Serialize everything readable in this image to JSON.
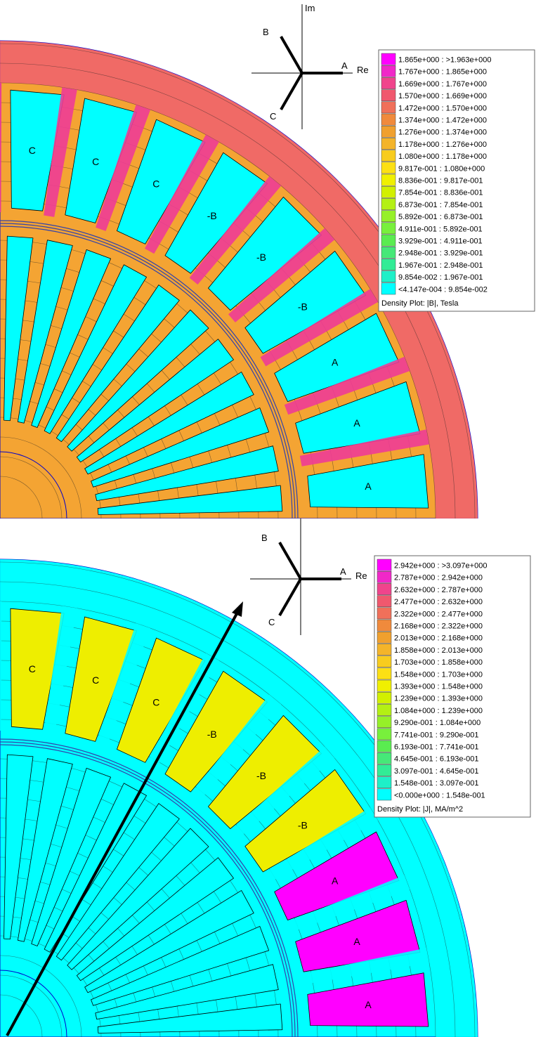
{
  "phasor": {
    "im_label": "Im",
    "re_label": "Re",
    "a_label": "A",
    "b_label": "B",
    "c_label": "C"
  },
  "plots": [
    {
      "id": "top",
      "bg_color": "#f4a433",
      "outer_band_color": "#ee6070",
      "slot_color": "#00ffff",
      "tooth_color": "#ee3c96",
      "legend_title": "Density Plot: |B|, Tesla",
      "legend": [
        {
          "label": "1.865e+000 : >1.963e+000",
          "color": "#ff00ff"
        },
        {
          "label": "1.767e+000 : 1.865e+000",
          "color": "#f028c8"
        },
        {
          "label": "1.669e+000 : 1.767e+000",
          "color": "#f0448c"
        },
        {
          "label": "1.570e+000 : 1.669e+000",
          "color": "#f0586e"
        },
        {
          "label": "1.472e+000 : 1.570e+000",
          "color": "#f0705a"
        },
        {
          "label": "1.374e+000 : 1.472e+000",
          "color": "#f08a3c"
        },
        {
          "label": "1.276e+000 : 1.374e+000",
          "color": "#f0a02e"
        },
        {
          "label": "1.178e+000 : 1.276e+000",
          "color": "#f4b42a"
        },
        {
          "label": "1.080e+000 : 1.178e+000",
          "color": "#f8cc1e"
        },
        {
          "label": "9.817e-001 : 1.080e+000",
          "color": "#fce014"
        },
        {
          "label": "8.836e-001 : 9.817e-001",
          "color": "#f0f000"
        },
        {
          "label": "7.854e-001 : 8.836e-001",
          "color": "#d2f000"
        },
        {
          "label": "6.873e-001 : 7.854e-001",
          "color": "#b4f014"
        },
        {
          "label": "5.892e-001 : 6.873e-001",
          "color": "#96f028"
        },
        {
          "label": "4.911e-001 : 5.892e-001",
          "color": "#78f03c"
        },
        {
          "label": "3.929e-001 : 4.911e-001",
          "color": "#5aec50"
        },
        {
          "label": "2.948e-001 : 3.929e-001",
          "color": "#46e878"
        },
        {
          "label": "1.967e-001 : 2.948e-001",
          "color": "#32ec96"
        },
        {
          "label": "9.854e-002 : 1.967e-001",
          "color": "#1ef0c8"
        },
        {
          "label": "<4.147e-004 : 9.854e-002",
          "color": "#00ffff"
        }
      ],
      "slots_outer": [
        "C",
        "C",
        "C",
        "-B",
        "-B",
        "-B",
        "A",
        "A",
        "A"
      ],
      "slot_colors": [
        "#00ffff",
        "#00ffff",
        "#00ffff",
        "#00ffff",
        "#00ffff",
        "#00ffff",
        "#00ffff",
        "#00ffff",
        "#00ffff"
      ],
      "show_arrow": false
    },
    {
      "id": "bottom",
      "bg_color": "#00ffff",
      "outer_band_color": "#00ffff",
      "slot_color": "#00ffff",
      "tooth_color": "#00ffff",
      "legend_title": "Density Plot: |J|, MA/m^2",
      "legend": [
        {
          "label": "2.942e+000 : >3.097e+000",
          "color": "#ff00ff"
        },
        {
          "label": "2.787e+000 : 2.942e+000",
          "color": "#f028c8"
        },
        {
          "label": "2.632e+000 : 2.787e+000",
          "color": "#f0448c"
        },
        {
          "label": "2.477e+000 : 2.632e+000",
          "color": "#f0586e"
        },
        {
          "label": "2.322e+000 : 2.477e+000",
          "color": "#f0705a"
        },
        {
          "label": "2.168e+000 : 2.322e+000",
          "color": "#f08a3c"
        },
        {
          "label": "2.013e+000 : 2.168e+000",
          "color": "#f0a02e"
        },
        {
          "label": "1.858e+000 : 2.013e+000",
          "color": "#f4b42a"
        },
        {
          "label": "1.703e+000 : 1.858e+000",
          "color": "#f8cc1e"
        },
        {
          "label": "1.548e+000 : 1.703e+000",
          "color": "#fce014"
        },
        {
          "label": "1.393e+000 : 1.548e+000",
          "color": "#f0f000"
        },
        {
          "label": "1.239e+000 : 1.393e+000",
          "color": "#d2f000"
        },
        {
          "label": "1.084e+000 : 1.239e+000",
          "color": "#b4f014"
        },
        {
          "label": "9.290e-001 : 1.084e+000",
          "color": "#96f028"
        },
        {
          "label": "7.741e-001 : 9.290e-001",
          "color": "#78f03c"
        },
        {
          "label": "6.193e-001 : 7.741e-001",
          "color": "#5aec50"
        },
        {
          "label": "4.645e-001 : 6.193e-001",
          "color": "#46e878"
        },
        {
          "label": "3.097e-001 : 4.645e-001",
          "color": "#32ec96"
        },
        {
          "label": "1.548e-001 : 3.097e-001",
          "color": "#1ef0c8"
        },
        {
          "label": "<0.000e+000 : 1.548e-001",
          "color": "#00ffff"
        }
      ],
      "slots_outer": [
        "C",
        "C",
        "C",
        "-B",
        "-B",
        "-B",
        "A",
        "A",
        "A"
      ],
      "slot_colors": [
        "#eeee00",
        "#eeee00",
        "#eeee00",
        "#eeee00",
        "#eeee00",
        "#eeee00",
        "#ff00ff",
        "#ff00ff",
        "#ff00ff"
      ],
      "show_arrow": true
    }
  ]
}
